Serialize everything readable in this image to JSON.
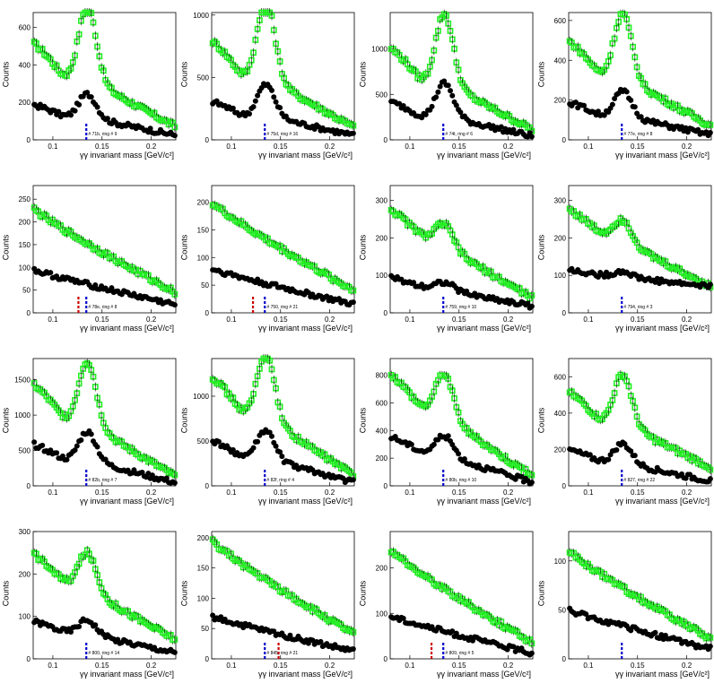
{
  "chart_data": [
    {
      "type": "scatter",
      "ylabel": "Counts",
      "xlabel": "γγ invariant mass [GeV/c²]",
      "xlim": [
        0.08,
        0.225
      ],
      "ylim": [
        0,
        680
      ],
      "yticks": [
        0,
        200,
        400,
        600
      ],
      "xticks": [
        0.1,
        0.15,
        0.2
      ],
      "note": "# 71b, ring # 9",
      "lines": [
        {
          "color": "#0000cc",
          "x": 0.134
        }
      ],
      "series": [
        {
          "color": "#22ee22",
          "bg": 520,
          "peak": 580,
          "amp": 400,
          "tail": 70
        },
        {
          "color": "#000000",
          "bg": 190,
          "peak": 255,
          "amp": 130,
          "tail": 25
        }
      ]
    },
    {
      "type": "scatter",
      "ylabel": "Counts",
      "xlabel": "γγ invariant mass [GeV/c²]",
      "xlim": [
        0.08,
        0.225
      ],
      "ylim": [
        0,
        1020
      ],
      "yticks": [
        0,
        500,
        1000
      ],
      "xticks": [
        0.1,
        0.15,
        0.2
      ],
      "note": "# 75d, ring # 16",
      "lines": [
        {
          "color": "#0000cc",
          "x": 0.134
        }
      ],
      "series": [
        {
          "color": "#22ee22",
          "bg": 800,
          "peak": 880,
          "amp": 640,
          "tail": 100
        },
        {
          "color": "#000000",
          "bg": 310,
          "peak": 420,
          "amp": 260,
          "tail": 35
        }
      ]
    },
    {
      "type": "scatter",
      "ylabel": "Counts",
      "xlabel": "γγ invariant mass [GeV/c²]",
      "xlim": [
        0.08,
        0.225
      ],
      "ylim": [
        0,
        1400
      ],
      "yticks": [
        0,
        500,
        1000
      ],
      "xticks": [
        0.1,
        0.15,
        0.2
      ],
      "note": "# 74t, ring # 6",
      "lines": [
        {
          "color": "#0000cc",
          "x": 0.134
        }
      ],
      "series": [
        {
          "color": "#22ee22",
          "bg": 1020,
          "peak": 1260,
          "amp": 780,
          "tail": 110
        },
        {
          "color": "#000000",
          "bg": 420,
          "peak": 610,
          "amp": 380,
          "tail": 40
        }
      ]
    },
    {
      "type": "scatter",
      "ylabel": "Counts",
      "xlabel": "γγ invariant mass [GeV/c²]",
      "xlim": [
        0.08,
        0.225
      ],
      "ylim": [
        0,
        640
      ],
      "yticks": [
        0,
        200,
        400,
        600
      ],
      "xticks": [
        0.1,
        0.15,
        0.2
      ],
      "note": "# 77e, ring # 8",
      "lines": [
        {
          "color": "#0000cc",
          "x": 0.134
        }
      ],
      "series": [
        {
          "color": "#22ee22",
          "bg": 500,
          "peak": 560,
          "amp": 330,
          "tail": 70
        },
        {
          "color": "#000000",
          "bg": 190,
          "peak": 250,
          "amp": 130,
          "tail": 25
        }
      ]
    },
    {
      "type": "scatter",
      "ylabel": "Counts",
      "xlabel": "γγ invariant mass [GeV/c²]",
      "xlim": [
        0.08,
        0.225
      ],
      "ylim": [
        0,
        280
      ],
      "yticks": [
        0,
        50,
        100,
        150,
        200,
        250
      ],
      "xticks": [
        0.1,
        0.15,
        0.2
      ],
      "note": "# 78e, ring # 8",
      "lines": [
        {
          "color": "#cc0000",
          "x": 0.126
        },
        {
          "color": "#0000cc",
          "x": 0.134
        }
      ],
      "series": [
        {
          "color": "#22ee22",
          "bg": 230,
          "peak": 0,
          "amp": 0,
          "tail": 45
        },
        {
          "color": "#000000",
          "bg": 95,
          "peak": 0,
          "amp": 0,
          "tail": 18
        }
      ]
    },
    {
      "type": "scatter",
      "ylabel": "Counts",
      "xlabel": "γγ invariant mass [GeV/c²]",
      "xlim": [
        0.08,
        0.225
      ],
      "ylim": [
        0,
        230
      ],
      "yticks": [
        0,
        50,
        100,
        150,
        200
      ],
      "xticks": [
        0.1,
        0.15,
        0.2
      ],
      "note": "# 750, ring # 21",
      "lines": [
        {
          "color": "#cc0000",
          "x": 0.122
        },
        {
          "color": "#0000cc",
          "x": 0.134
        }
      ],
      "series": [
        {
          "color": "#22ee22",
          "bg": 200,
          "peak": 0,
          "amp": 0,
          "tail": 40
        },
        {
          "color": "#000000",
          "bg": 80,
          "peak": 0,
          "amp": 0,
          "tail": 15
        }
      ]
    },
    {
      "type": "scatter",
      "ylabel": "Counts",
      "xlabel": "γγ invariant mass [GeV/c²]",
      "xlim": [
        0.08,
        0.225
      ],
      "ylim": [
        0,
        340
      ],
      "yticks": [
        0,
        100,
        200,
        300
      ],
      "xticks": [
        0.1,
        0.15,
        0.2
      ],
      "note": "# 759, ring # 10",
      "lines": [
        {
          "color": "#0000cc",
          "x": 0.134
        }
      ],
      "series": [
        {
          "color": "#22ee22",
          "bg": 280,
          "peak": 300,
          "amp": 60,
          "tail": 40
        },
        {
          "color": "#000000",
          "bg": 95,
          "peak": 100,
          "amp": 20,
          "tail": 18
        }
      ]
    },
    {
      "type": "scatter",
      "ylabel": "Counts",
      "xlabel": "γγ invariant mass [GeV/c²]",
      "xlim": [
        0.08,
        0.225
      ],
      "ylim": [
        0,
        340
      ],
      "yticks": [
        0,
        100,
        200,
        300
      ],
      "xticks": [
        0.1,
        0.15,
        0.2
      ],
      "note": "# 794, ring # 3",
      "lines": [
        {
          "color": "#0000cc",
          "x": 0.134
        }
      ],
      "series": [
        {
          "color": "#22ee22",
          "bg": 280,
          "peak": 300,
          "amp": 60,
          "tail": 70
        },
        {
          "color": "#000000",
          "bg": 115,
          "peak": 120,
          "amp": 15,
          "tail": 70
        }
      ]
    },
    {
      "type": "scatter",
      "ylabel": "Counts",
      "xlabel": "γγ invariant mass [GeV/c²]",
      "xlim": [
        0.08,
        0.225
      ],
      "ylim": [
        0,
        1800
      ],
      "yticks": [
        0,
        500,
        1000,
        1500
      ],
      "xticks": [
        0.1,
        0.15,
        0.2
      ],
      "note": "# 82b, ring # 7",
      "lines": [
        {
          "color": "#0000cc",
          "x": 0.134
        }
      ],
      "series": [
        {
          "color": "#22ee22",
          "bg": 1450,
          "peak": 1700,
          "amp": 900,
          "tail": 130
        },
        {
          "color": "#000000",
          "bg": 590,
          "peak": 780,
          "amp": 420,
          "tail": 45
        }
      ]
    },
    {
      "type": "scatter",
      "ylabel": "Counts",
      "xlabel": "γγ invariant mass [GeV/c²]",
      "xlim": [
        0.08,
        0.225
      ],
      "ylim": [
        0,
        1420
      ],
      "yticks": [
        0,
        500,
        1000
      ],
      "xticks": [
        0.1,
        0.15,
        0.2
      ],
      "note": "# 82f, ring # 4",
      "lines": [
        {
          "color": "#0000cc",
          "x": 0.134
        }
      ],
      "series": [
        {
          "color": "#22ee22",
          "bg": 1230,
          "peak": 1380,
          "amp": 720,
          "tail": 120
        },
        {
          "color": "#000000",
          "bg": 500,
          "peak": 580,
          "amp": 320,
          "tail": 40
        }
      ]
    },
    {
      "type": "scatter",
      "ylabel": "Counts",
      "xlabel": "γγ invariant mass [GeV/c²]",
      "xlim": [
        0.08,
        0.225
      ],
      "ylim": [
        0,
        920
      ],
      "yticks": [
        0,
        200,
        400,
        600,
        800
      ],
      "xticks": [
        0.1,
        0.15,
        0.2
      ],
      "note": "# 80b, ring # 10",
      "lines": [
        {
          "color": "#0000cc",
          "x": 0.134
        }
      ],
      "series": [
        {
          "color": "#22ee22",
          "bg": 820,
          "peak": 890,
          "amp": 320,
          "tail": 70
        },
        {
          "color": "#000000",
          "bg": 360,
          "peak": 400,
          "amp": 150,
          "tail": 25
        }
      ]
    },
    {
      "type": "scatter",
      "ylabel": "Counts",
      "xlabel": "γγ invariant mass [GeV/c²]",
      "xlim": [
        0.08,
        0.225
      ],
      "ylim": [
        0,
        700
      ],
      "yticks": [
        0,
        200,
        400,
        600
      ],
      "xticks": [
        0.1,
        0.15,
        0.2
      ],
      "note": "# 827, ring # 22",
      "lines": [
        {
          "color": "#0000cc",
          "x": 0.134
        }
      ],
      "series": [
        {
          "color": "#22ee22",
          "bg": 520,
          "peak": 660,
          "amp": 280,
          "tail": 100
        },
        {
          "color": "#000000",
          "bg": 200,
          "peak": 280,
          "amp": 110,
          "tail": 25
        }
      ]
    },
    {
      "type": "scatter",
      "ylabel": "Counts",
      "xlabel": "γγ invariant mass [GeV/c²]",
      "xlim": [
        0.08,
        0.225
      ],
      "ylim": [
        0,
        300
      ],
      "yticks": [
        0,
        100,
        200,
        300
      ],
      "xticks": [
        0.1,
        0.15,
        0.2
      ],
      "note": "# 800, ring # 14",
      "lines": [
        {
          "color": "#0000cc",
          "x": 0.134
        }
      ],
      "series": [
        {
          "color": "#22ee22",
          "bg": 250,
          "peak": 280,
          "amp": 90,
          "tail": 45
        },
        {
          "color": "#000000",
          "bg": 90,
          "peak": 105,
          "amp": 35,
          "tail": 15
        }
      ]
    },
    {
      "type": "scatter",
      "ylabel": "Counts",
      "xlabel": "γγ invariant mass [GeV/c²]",
      "xlim": [
        0.08,
        0.225
      ],
      "ylim": [
        0,
        210
      ],
      "yticks": [
        0,
        50,
        100,
        150,
        200
      ],
      "xticks": [
        0.1,
        0.15,
        0.2
      ],
      "note": "# 845, ring # 21",
      "lines": [
        {
          "color": "#0000cc",
          "x": 0.134
        },
        {
          "color": "#cc0000",
          "x": 0.148
        }
      ],
      "series": [
        {
          "color": "#22ee22",
          "bg": 195,
          "peak": 0,
          "amp": 0,
          "tail": 40
        },
        {
          "color": "#000000",
          "bg": 70,
          "peak": 0,
          "amp": 0,
          "tail": 12
        }
      ]
    },
    {
      "type": "scatter",
      "ylabel": "Counts",
      "xlabel": "γγ invariant mass [GeV/c²]",
      "xlim": [
        0.08,
        0.225
      ],
      "ylim": [
        0,
        280
      ],
      "yticks": [
        0,
        100,
        200
      ],
      "xticks": [
        0.1,
        0.15,
        0.2
      ],
      "note": "# 809, ring # 5",
      "lines": [
        {
          "color": "#cc0000",
          "x": 0.122
        },
        {
          "color": "#0000cc",
          "x": 0.134
        }
      ],
      "series": [
        {
          "color": "#22ee22",
          "bg": 240,
          "peak": 0,
          "amp": 0,
          "tail": 35
        },
        {
          "color": "#000000",
          "bg": 95,
          "peak": 0,
          "amp": 0,
          "tail": 12
        }
      ]
    },
    {
      "type": "scatter",
      "ylabel": "Counts",
      "xlabel": "γγ invariant mass [GeV/c²]",
      "xlim": [
        0.08,
        0.225
      ],
      "ylim": [
        0,
        130
      ],
      "yticks": [
        0,
        50,
        100
      ],
      "xticks": [
        0.1,
        0.15,
        0.2
      ],
      "note": "",
      "lines": [
        {
          "color": "#0000cc",
          "x": 0.134
        }
      ],
      "series": [
        {
          "color": "#22ee22",
          "bg": 110,
          "peak": 0,
          "amp": 0,
          "tail": 20
        },
        {
          "color": "#000000",
          "bg": 50,
          "peak": 0,
          "amp": 0,
          "tail": 10
        }
      ]
    }
  ]
}
